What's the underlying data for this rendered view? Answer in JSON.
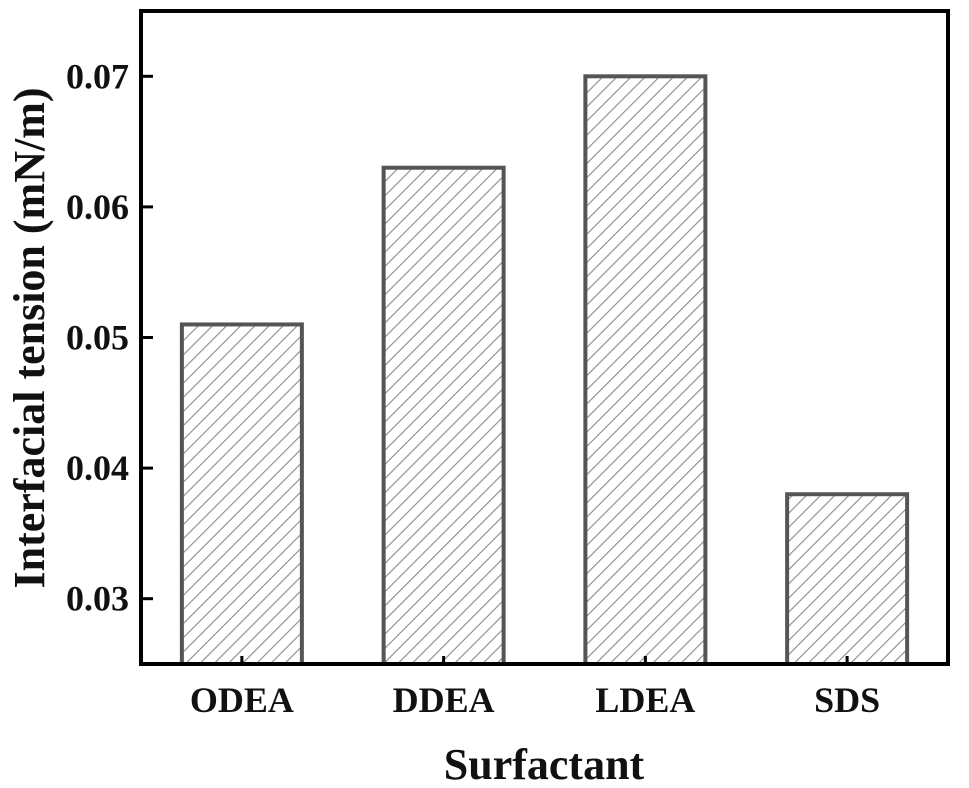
{
  "chart_data": {
    "type": "bar",
    "title": "",
    "xlabel": "Surfactant",
    "ylabel": "Interfacial tension (mN/m)",
    "categories": [
      "ODEA",
      "DDEA",
      "LDEA",
      "SDS"
    ],
    "values": [
      0.051,
      0.063,
      0.07,
      0.038
    ],
    "ylim": [
      0.025,
      0.075
    ],
    "yticks": [
      0.03,
      0.04,
      0.05,
      0.06,
      0.07
    ],
    "ytick_labels": [
      "0.03",
      "0.04",
      "0.05",
      "0.06",
      "0.07"
    ],
    "grid": false,
    "legend": "none",
    "bar_fill": "hatched",
    "colors": {
      "bar_edge": "#555555",
      "hatch": "#888888",
      "axis": "#000000"
    }
  }
}
